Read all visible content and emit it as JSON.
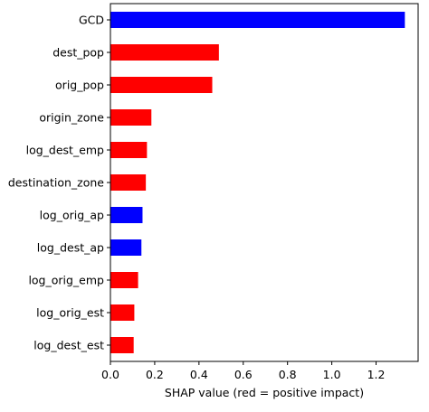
{
  "chart_data": {
    "type": "bar",
    "orientation": "horizontal",
    "categories": [
      "GCD",
      "dest_pop",
      "orig_pop",
      "origin_zone",
      "log_dest_emp",
      "destination_zone",
      "log_orig_ap",
      "log_dest_ap",
      "log_orig_emp",
      "log_orig_est",
      "log_dest_est"
    ],
    "values": [
      1.33,
      0.49,
      0.46,
      0.185,
      0.165,
      0.16,
      0.145,
      0.14,
      0.125,
      0.108,
      0.105
    ],
    "bar_colors": [
      "#0000ff",
      "#ff0000",
      "#ff0000",
      "#ff0000",
      "#ff0000",
      "#ff0000",
      "#0000ff",
      "#0000ff",
      "#ff0000",
      "#ff0000",
      "#ff0000"
    ],
    "xlabel": "SHAP value (red = positive impact)",
    "xlim": [
      0,
      1.39
    ],
    "xticks": [
      "0.0",
      "0.2",
      "0.4",
      "0.6",
      "0.8",
      "1.0",
      "1.2"
    ],
    "xtick_values": [
      0,
      0.2,
      0.4,
      0.6,
      0.8,
      1.0,
      1.2
    ],
    "grid": false
  }
}
